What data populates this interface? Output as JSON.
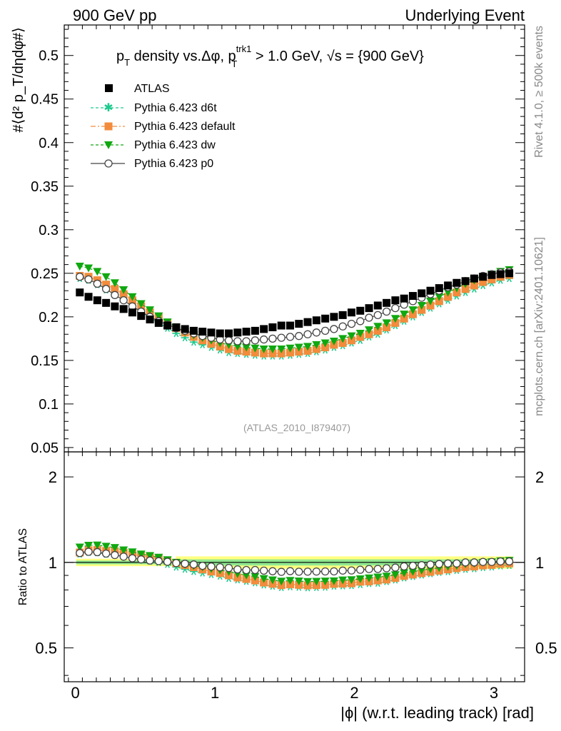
{
  "header": {
    "left": "900 GeV pp",
    "right": "Underlying Event",
    "side_top": "Rivet 4.1.0, ≥ 500k events",
    "side_bottom": "mcplots.cern.ch [arXiv:2401.10621]"
  },
  "colors": {
    "atlas": "#000000",
    "d6t": "#1ec98e",
    "default": "#f28c3c",
    "dw": "#10a810",
    "p0": "#444444",
    "band_outer": "#ffff80",
    "band_inner": "#90e890"
  },
  "chart_data": [
    {
      "type": "scatter",
      "title": "p_T density vs.Δφ, p_T^trk1 > 1.0 GeV, √s = {900 GeV}",
      "title_parts": {
        "pre": "p",
        "sub1": "T",
        "mid": " density vs.Δφ, p",
        "sup": "trk1",
        "sub2": "T",
        "post": " > 1.0 GeV, √s = {900 GeV}"
      },
      "ylabel": "#⟨d² p_T/dηdφ#⟩",
      "watermark": "(ATLAS_2010_I879407)",
      "xlim": [
        -0.08,
        3.22
      ],
      "ylim": [
        0.045,
        0.535
      ],
      "yticks": [
        0.05,
        0.1,
        0.15,
        0.2,
        0.25,
        0.3,
        0.35,
        0.4,
        0.45,
        0.5
      ],
      "ytick_labels": [
        "0.05",
        "0.1",
        "0.15",
        "0.2",
        "0.25",
        "0.3",
        "0.35",
        "0.4",
        "0.45",
        "0.5"
      ],
      "x": [
        0.0314,
        0.0942,
        0.157,
        0.2199,
        0.2827,
        0.3456,
        0.4084,
        0.4712,
        0.5341,
        0.5969,
        0.6597,
        0.7226,
        0.7854,
        0.8482,
        0.9111,
        0.9739,
        1.0367,
        1.0996,
        1.1624,
        1.2252,
        1.2881,
        1.3509,
        1.4137,
        1.4765,
        1.5394,
        1.6022,
        1.665,
        1.7279,
        1.7907,
        1.8535,
        1.9164,
        1.9792,
        2.042,
        2.1049,
        2.1677,
        2.2305,
        2.2934,
        2.3562,
        2.419,
        2.4819,
        2.5447,
        2.6075,
        2.6704,
        2.7332,
        2.796,
        2.8588,
        2.9217,
        2.9845,
        3.0473,
        3.1102
      ],
      "legend": [
        "ATLAS",
        "Pythia 6.423 d6t",
        "Pythia 6.423 default",
        "Pythia 6.423 dw",
        "Pythia 6.423 p0"
      ],
      "legend_position": "top-left",
      "series": [
        {
          "name": "ATLAS",
          "marker": "square",
          "values": [
            0.228,
            0.223,
            0.219,
            0.216,
            0.212,
            0.209,
            0.205,
            0.201,
            0.197,
            0.193,
            0.19,
            0.188,
            0.186,
            0.184,
            0.183,
            0.182,
            0.181,
            0.181,
            0.182,
            0.183,
            0.184,
            0.186,
            0.188,
            0.19,
            0.19,
            0.192,
            0.194,
            0.196,
            0.198,
            0.2,
            0.202,
            0.205,
            0.207,
            0.21,
            0.213,
            0.216,
            0.219,
            0.221,
            0.224,
            0.227,
            0.23,
            0.233,
            0.236,
            0.239,
            0.241,
            0.244,
            0.246,
            0.248,
            0.249,
            0.25
          ]
        },
        {
          "name": "Pythia 6.423 d6t",
          "marker": "star",
          "values": [
            0.244,
            0.242,
            0.237,
            0.231,
            0.226,
            0.22,
            0.213,
            0.206,
            0.199,
            0.193,
            0.187,
            0.181,
            0.176,
            0.171,
            0.168,
            0.165,
            0.162,
            0.159,
            0.158,
            0.157,
            0.156,
            0.155,
            0.155,
            0.155,
            0.156,
            0.157,
            0.158,
            0.16,
            0.162,
            0.165,
            0.167,
            0.17,
            0.173,
            0.177,
            0.18,
            0.185,
            0.19,
            0.195,
            0.2,
            0.205,
            0.21,
            0.215,
            0.219,
            0.224,
            0.228,
            0.232,
            0.236,
            0.239,
            0.242,
            0.244
          ]
        },
        {
          "name": "Pythia 6.423 default",
          "marker": "square",
          "values": [
            0.247,
            0.246,
            0.242,
            0.237,
            0.232,
            0.226,
            0.219,
            0.212,
            0.205,
            0.199,
            0.193,
            0.187,
            0.182,
            0.177,
            0.173,
            0.169,
            0.166,
            0.163,
            0.161,
            0.16,
            0.159,
            0.158,
            0.158,
            0.158,
            0.159,
            0.16,
            0.161,
            0.163,
            0.165,
            0.168,
            0.17,
            0.173,
            0.177,
            0.18,
            0.184,
            0.188,
            0.193,
            0.198,
            0.203,
            0.208,
            0.213,
            0.218,
            0.223,
            0.228,
            0.232,
            0.236,
            0.24,
            0.243,
            0.246,
            0.248
          ]
        },
        {
          "name": "Pythia 6.423 dw",
          "marker": "triangle-down",
          "values": [
            0.258,
            0.256,
            0.252,
            0.246,
            0.239,
            0.231,
            0.223,
            0.215,
            0.208,
            0.201,
            0.194,
            0.188,
            0.183,
            0.179,
            0.176,
            0.173,
            0.17,
            0.168,
            0.166,
            0.165,
            0.164,
            0.163,
            0.163,
            0.163,
            0.164,
            0.165,
            0.166,
            0.168,
            0.17,
            0.172,
            0.175,
            0.178,
            0.181,
            0.185,
            0.189,
            0.193,
            0.198,
            0.203,
            0.208,
            0.213,
            0.218,
            0.223,
            0.228,
            0.233,
            0.238,
            0.242,
            0.246,
            0.249,
            0.252,
            0.254
          ]
        },
        {
          "name": "Pythia 6.423 p0",
          "marker": "open-circle",
          "line": "solid",
          "values": [
            0.246,
            0.243,
            0.238,
            0.232,
            0.225,
            0.219,
            0.212,
            0.206,
            0.2,
            0.195,
            0.191,
            0.187,
            0.184,
            0.181,
            0.178,
            0.176,
            0.174,
            0.173,
            0.172,
            0.172,
            0.173,
            0.174,
            0.175,
            0.176,
            0.177,
            0.178,
            0.18,
            0.182,
            0.184,
            0.186,
            0.189,
            0.192,
            0.195,
            0.199,
            0.202,
            0.206,
            0.21,
            0.214,
            0.218,
            0.222,
            0.226,
            0.23,
            0.234,
            0.237,
            0.241,
            0.244,
            0.247,
            0.249,
            0.251,
            0.252
          ]
        }
      ]
    },
    {
      "type": "scatter",
      "ylabel": "Ratio to ATLAS",
      "xlabel": "|ϕ| (w.r.t. leading track) [rad]",
      "xlim": [
        -0.08,
        3.22
      ],
      "ylim": [
        0.38,
        2.45
      ],
      "ylog": true,
      "xticks": [
        0,
        1,
        2,
        3
      ],
      "xtick_labels": [
        "0",
        "1",
        "2",
        "3"
      ],
      "yticks": [
        0.5,
        1,
        2
      ],
      "ytick_labels": [
        "0.5",
        "1",
        "2"
      ],
      "band": {
        "outer": [
          0.95,
          1.05
        ],
        "inner": [
          0.975,
          1.025
        ],
        "start_x": 0.72
      }
    }
  ]
}
